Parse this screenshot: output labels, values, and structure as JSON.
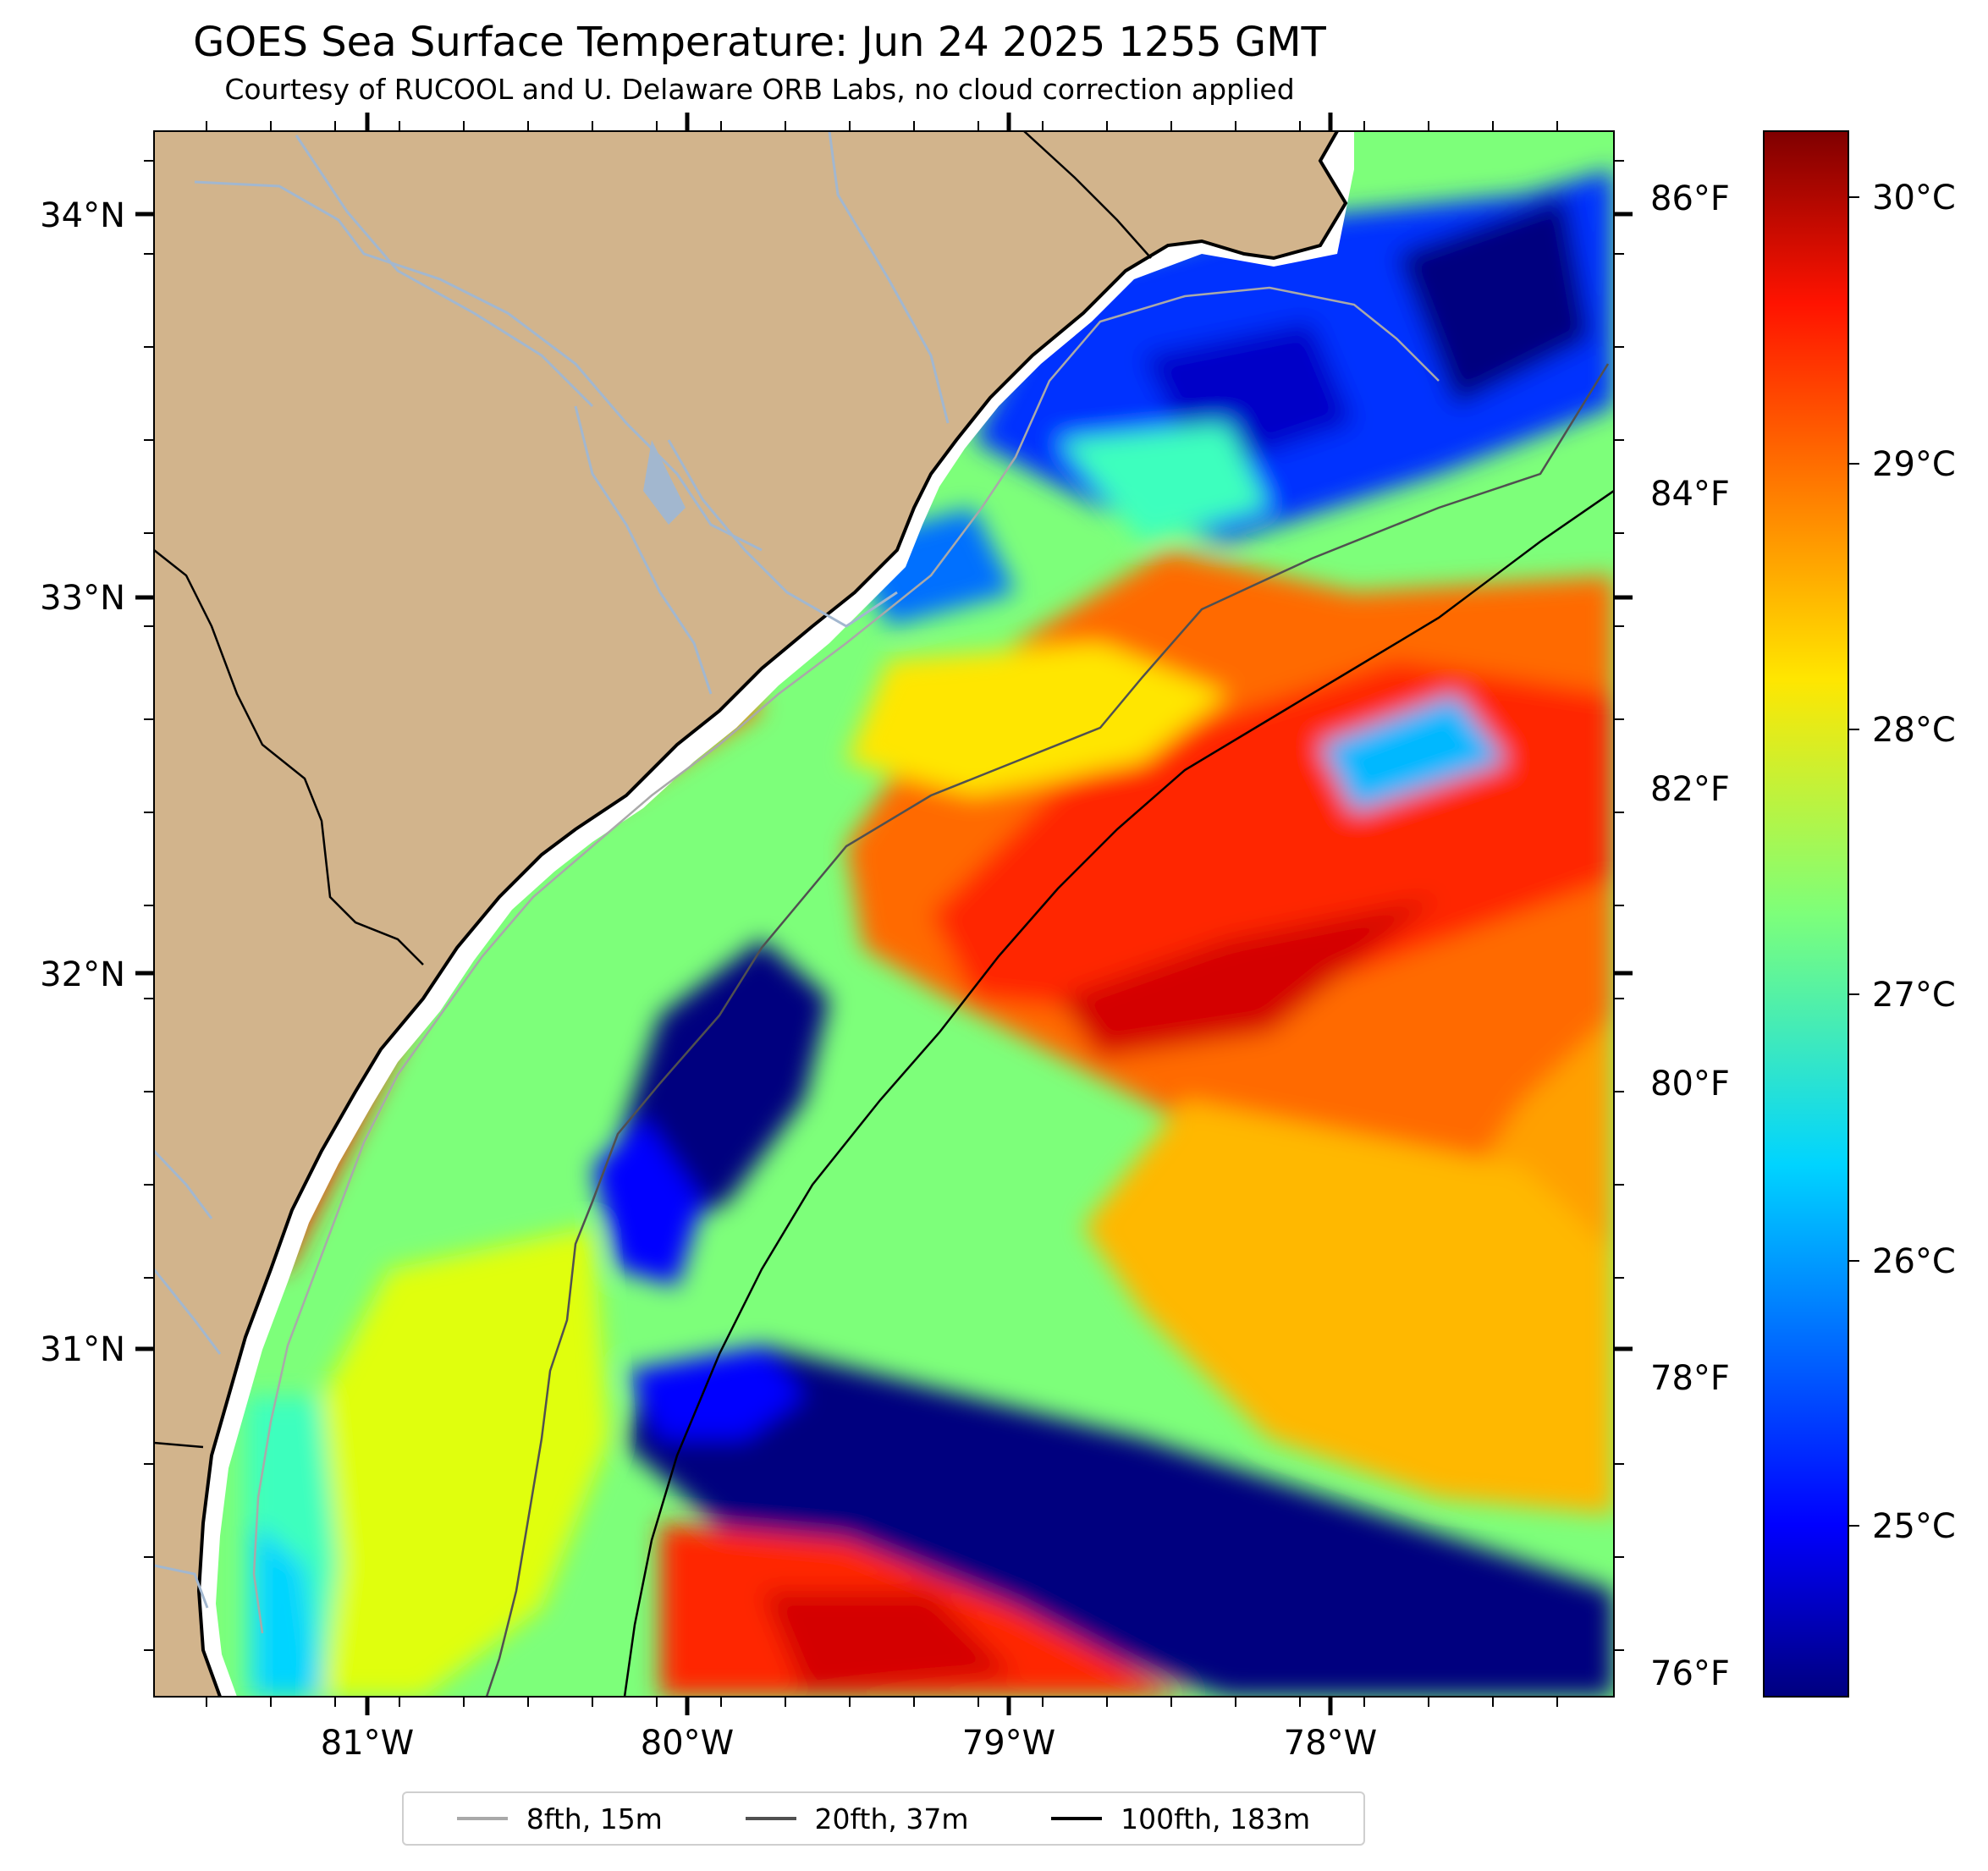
{
  "title": "GOES Sea Surface Temperature: Jun 24 2025 1255 GMT",
  "subtitle": "Courtesy of RUCOOL and U. Delaware ORB Labs, no cloud correction applied",
  "map": {
    "lat_labels": [
      "34°N",
      "33°N",
      "32°N",
      "31°N"
    ],
    "lon_labels": [
      "81°W",
      "80°W",
      "79°W",
      "78°W"
    ],
    "lat_range": [
      30.1,
      34.23
    ],
    "lon_range": [
      -81.67,
      -77.1
    ],
    "land_color": "#d2b48c",
    "river_color": "#a2b7cf"
  },
  "colorbar": {
    "colormap": "jet",
    "celsius_labels": [
      "30°C",
      "29°C",
      "28°C",
      "27°C",
      "26°C",
      "25°C"
    ],
    "fahrenheit_labels": [
      "86°F",
      "84°F",
      "82°F",
      "80°F",
      "78°F",
      "76°F"
    ],
    "range_c": [
      24.2,
      30.2
    ]
  },
  "legend": [
    {
      "label": "8fth, 15m",
      "color": "#a9a9a9"
    },
    {
      "label": "20fth, 37m",
      "color": "#505050"
    },
    {
      "label": "100fth, 183m",
      "color": "#000000"
    }
  ]
}
